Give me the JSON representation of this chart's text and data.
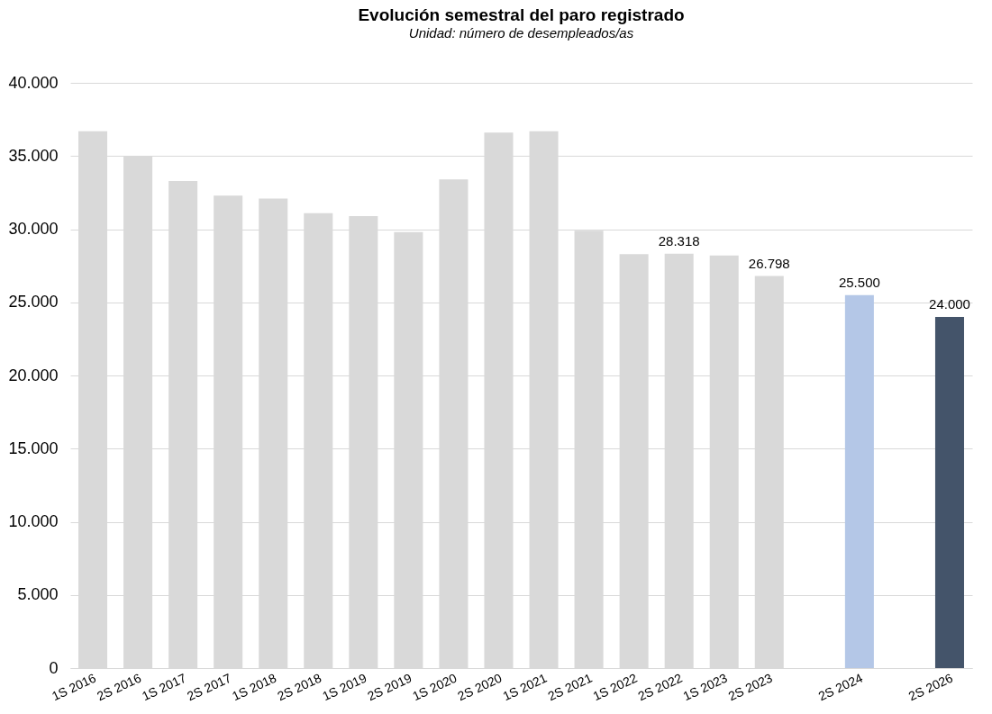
{
  "chart_data": {
    "type": "bar",
    "title": "Evolución semestral del paro registrado",
    "subtitle": "Unidad: número de desempleados/as",
    "categories": [
      "1S 2016",
      "2S 2016",
      "1S 2017",
      "2S 2017",
      "1S 2018",
      "2S 2018",
      "1S 2019",
      "2S 2019",
      "1S 2020",
      "2S 2020",
      "1S 2021",
      "2S 2021",
      "1S 2022",
      "2S 2022",
      "1S 2023",
      "2S 2023",
      null,
      "2S 2024",
      null,
      "2S 2026"
    ],
    "values": [
      36700,
      35000,
      33300,
      32300,
      32100,
      31100,
      30900,
      29800,
      33400,
      36600,
      36700,
      29900,
      28300,
      28318,
      28200,
      26798,
      null,
      25500,
      null,
      24000
    ],
    "value_labels": [
      null,
      null,
      null,
      null,
      null,
      null,
      null,
      null,
      null,
      null,
      null,
      null,
      null,
      "28.318",
      null,
      "26.798",
      null,
      "25.500",
      null,
      "24.000"
    ],
    "colors": [
      "#d9d9d9",
      "#d9d9d9",
      "#d9d9d9",
      "#d9d9d9",
      "#d9d9d9",
      "#d9d9d9",
      "#d9d9d9",
      "#d9d9d9",
      "#d9d9d9",
      "#d9d9d9",
      "#d9d9d9",
      "#d9d9d9",
      "#d9d9d9",
      "#d9d9d9",
      "#d9d9d9",
      "#d9d9d9",
      "#d9d9d9",
      "#b4c7e7",
      "#d9d9d9",
      "#44546a"
    ],
    "ylim": [
      0,
      40000
    ],
    "yticks": [
      {
        "value": 0,
        "label": "0"
      },
      {
        "value": 5000,
        "label": "5.000"
      },
      {
        "value": 10000,
        "label": "10.000"
      },
      {
        "value": 15000,
        "label": "15.000"
      },
      {
        "value": 20000,
        "label": "20.000"
      },
      {
        "value": 25000,
        "label": "25.000"
      },
      {
        "value": 30000,
        "label": "30.000"
      },
      {
        "value": 35000,
        "label": "35.000"
      },
      {
        "value": 40000,
        "label": "40.000"
      }
    ],
    "grid": "y",
    "legend": false
  }
}
